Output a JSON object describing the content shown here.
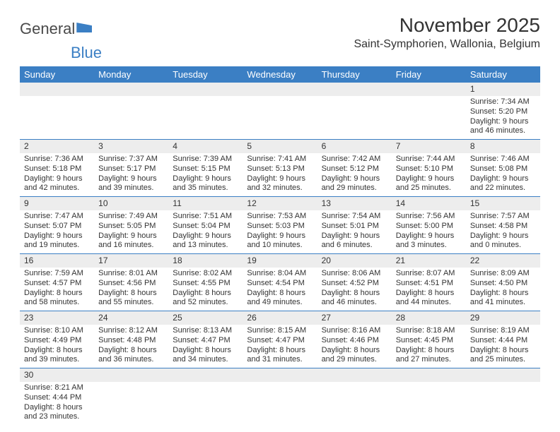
{
  "logo": {
    "text1": "General",
    "text2": "Blue"
  },
  "title": "November 2025",
  "location": "Saint-Symphorien, Wallonia, Belgium",
  "colors": {
    "header_bg": "#3b7fc4",
    "header_fg": "#ffffff",
    "daynum_bg": "#ededed",
    "row_divider": "#3b7fc4",
    "text": "#333333",
    "page_bg": "#ffffff"
  },
  "daynames": [
    "Sunday",
    "Monday",
    "Tuesday",
    "Wednesday",
    "Thursday",
    "Friday",
    "Saturday"
  ],
  "weeks": [
    {
      "nums": [
        "",
        "",
        "",
        "",
        "",
        "",
        "1"
      ],
      "rise": [
        "",
        "",
        "",
        "",
        "",
        "",
        "Sunrise: 7:34 AM"
      ],
      "set": [
        "",
        "",
        "",
        "",
        "",
        "",
        "Sunset: 5:20 PM"
      ],
      "day1": [
        "",
        "",
        "",
        "",
        "",
        "",
        "Daylight: 9 hours"
      ],
      "day2": [
        "",
        "",
        "",
        "",
        "",
        "",
        "and 46 minutes."
      ]
    },
    {
      "nums": [
        "2",
        "3",
        "4",
        "5",
        "6",
        "7",
        "8"
      ],
      "rise": [
        "Sunrise: 7:36 AM",
        "Sunrise: 7:37 AM",
        "Sunrise: 7:39 AM",
        "Sunrise: 7:41 AM",
        "Sunrise: 7:42 AM",
        "Sunrise: 7:44 AM",
        "Sunrise: 7:46 AM"
      ],
      "set": [
        "Sunset: 5:18 PM",
        "Sunset: 5:17 PM",
        "Sunset: 5:15 PM",
        "Sunset: 5:13 PM",
        "Sunset: 5:12 PM",
        "Sunset: 5:10 PM",
        "Sunset: 5:08 PM"
      ],
      "day1": [
        "Daylight: 9 hours",
        "Daylight: 9 hours",
        "Daylight: 9 hours",
        "Daylight: 9 hours",
        "Daylight: 9 hours",
        "Daylight: 9 hours",
        "Daylight: 9 hours"
      ],
      "day2": [
        "and 42 minutes.",
        "and 39 minutes.",
        "and 35 minutes.",
        "and 32 minutes.",
        "and 29 minutes.",
        "and 25 minutes.",
        "and 22 minutes."
      ]
    },
    {
      "nums": [
        "9",
        "10",
        "11",
        "12",
        "13",
        "14",
        "15"
      ],
      "rise": [
        "Sunrise: 7:47 AM",
        "Sunrise: 7:49 AM",
        "Sunrise: 7:51 AM",
        "Sunrise: 7:53 AM",
        "Sunrise: 7:54 AM",
        "Sunrise: 7:56 AM",
        "Sunrise: 7:57 AM"
      ],
      "set": [
        "Sunset: 5:07 PM",
        "Sunset: 5:05 PM",
        "Sunset: 5:04 PM",
        "Sunset: 5:03 PM",
        "Sunset: 5:01 PM",
        "Sunset: 5:00 PM",
        "Sunset: 4:58 PM"
      ],
      "day1": [
        "Daylight: 9 hours",
        "Daylight: 9 hours",
        "Daylight: 9 hours",
        "Daylight: 9 hours",
        "Daylight: 9 hours",
        "Daylight: 9 hours",
        "Daylight: 9 hours"
      ],
      "day2": [
        "and 19 minutes.",
        "and 16 minutes.",
        "and 13 minutes.",
        "and 10 minutes.",
        "and 6 minutes.",
        "and 3 minutes.",
        "and 0 minutes."
      ]
    },
    {
      "nums": [
        "16",
        "17",
        "18",
        "19",
        "20",
        "21",
        "22"
      ],
      "rise": [
        "Sunrise: 7:59 AM",
        "Sunrise: 8:01 AM",
        "Sunrise: 8:02 AM",
        "Sunrise: 8:04 AM",
        "Sunrise: 8:06 AM",
        "Sunrise: 8:07 AM",
        "Sunrise: 8:09 AM"
      ],
      "set": [
        "Sunset: 4:57 PM",
        "Sunset: 4:56 PM",
        "Sunset: 4:55 PM",
        "Sunset: 4:54 PM",
        "Sunset: 4:52 PM",
        "Sunset: 4:51 PM",
        "Sunset: 4:50 PM"
      ],
      "day1": [
        "Daylight: 8 hours",
        "Daylight: 8 hours",
        "Daylight: 8 hours",
        "Daylight: 8 hours",
        "Daylight: 8 hours",
        "Daylight: 8 hours",
        "Daylight: 8 hours"
      ],
      "day2": [
        "and 58 minutes.",
        "and 55 minutes.",
        "and 52 minutes.",
        "and 49 minutes.",
        "and 46 minutes.",
        "and 44 minutes.",
        "and 41 minutes."
      ]
    },
    {
      "nums": [
        "23",
        "24",
        "25",
        "26",
        "27",
        "28",
        "29"
      ],
      "rise": [
        "Sunrise: 8:10 AM",
        "Sunrise: 8:12 AM",
        "Sunrise: 8:13 AM",
        "Sunrise: 8:15 AM",
        "Sunrise: 8:16 AM",
        "Sunrise: 8:18 AM",
        "Sunrise: 8:19 AM"
      ],
      "set": [
        "Sunset: 4:49 PM",
        "Sunset: 4:48 PM",
        "Sunset: 4:47 PM",
        "Sunset: 4:47 PM",
        "Sunset: 4:46 PM",
        "Sunset: 4:45 PM",
        "Sunset: 4:44 PM"
      ],
      "day1": [
        "Daylight: 8 hours",
        "Daylight: 8 hours",
        "Daylight: 8 hours",
        "Daylight: 8 hours",
        "Daylight: 8 hours",
        "Daylight: 8 hours",
        "Daylight: 8 hours"
      ],
      "day2": [
        "and 39 minutes.",
        "and 36 minutes.",
        "and 34 minutes.",
        "and 31 minutes.",
        "and 29 minutes.",
        "and 27 minutes.",
        "and 25 minutes."
      ]
    },
    {
      "nums": [
        "30",
        "",
        "",
        "",
        "",
        "",
        ""
      ],
      "rise": [
        "Sunrise: 8:21 AM",
        "",
        "",
        "",
        "",
        "",
        ""
      ],
      "set": [
        "Sunset: 4:44 PM",
        "",
        "",
        "",
        "",
        "",
        ""
      ],
      "day1": [
        "Daylight: 8 hours",
        "",
        "",
        "",
        "",
        "",
        ""
      ],
      "day2": [
        "and 23 minutes.",
        "",
        "",
        "",
        "",
        "",
        ""
      ]
    }
  ]
}
